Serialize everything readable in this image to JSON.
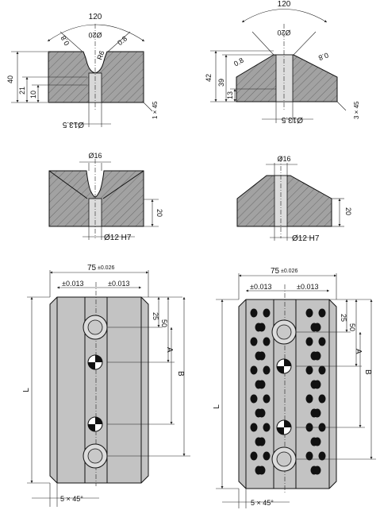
{
  "view_a": {
    "angle": "120",
    "bore_top": "Ø20",
    "chamfer_left": "0.8",
    "chamfer_right": "0.8",
    "radius": "R6",
    "height_total": "40",
    "height_mid": "21",
    "height_low": "10",
    "bore_bottom": "Ø13.5",
    "corner_chamfer": "1 × 45"
  },
  "view_b": {
    "angle": "120",
    "bore_top": "Ø20",
    "chamfer_left": "0.8",
    "chamfer_right": "0.8",
    "height_total": "42",
    "height_mid": "39",
    "height_low": "13",
    "bore_bottom": "Ø13.5",
    "corner_chamfer": "3 × 45"
  },
  "view_c": {
    "bore_top": "Ø16",
    "height": "20",
    "bore_bottom": "Ø12 H7"
  },
  "view_d": {
    "bore_top": "Ø16",
    "height": "20",
    "bore_bottom": "Ø12 H7"
  },
  "plate_left": {
    "width": "75",
    "width_tol": "±0.026",
    "offset_left": "±0.013",
    "offset_right": "±0.013",
    "dim_25": "25",
    "dim_50": "50",
    "dim_a": "A",
    "dim_b": "B",
    "dim_l": "L",
    "chamfer": "5 × 45°"
  },
  "plate_right": {
    "width": "75",
    "width_tol": "±0.026",
    "offset_left": "±0.013",
    "offset_right": "±0.013",
    "dim_25": "25",
    "dim_50": "50",
    "dim_a": "A",
    "dim_b": "B",
    "dim_l": "L",
    "chamfer": "5 × 45°"
  }
}
